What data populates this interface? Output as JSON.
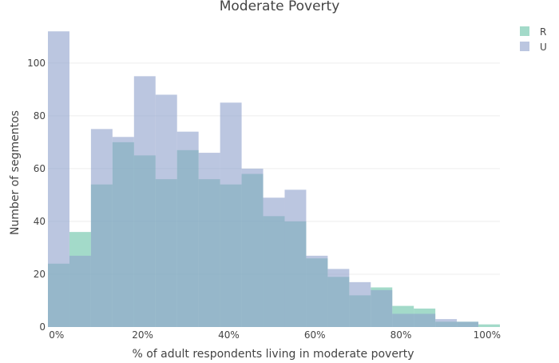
{
  "chart_data": {
    "type": "bar",
    "title": "Moderate Poverty",
    "xlabel": "% of adult respondents living in moderate poverty",
    "ylabel": "Number of segmentos",
    "xlim": [
      -0.02,
      1.03
    ],
    "ylim": [
      0,
      116
    ],
    "x_ticks": [
      0,
      0.2,
      0.4,
      0.6,
      0.8,
      1.0
    ],
    "x_tick_labels": [
      "0%",
      "20%",
      "40%",
      "60%",
      "80%",
      "100%"
    ],
    "y_ticks": [
      0,
      20,
      40,
      60,
      80,
      100
    ],
    "y_tick_labels": [
      "0",
      "20",
      "40",
      "60",
      "80",
      "100"
    ],
    "bin_edges": [
      -0.02,
      0.03,
      0.08,
      0.13,
      0.18,
      0.23,
      0.28,
      0.33,
      0.38,
      0.43,
      0.48,
      0.53,
      0.58,
      0.63,
      0.68,
      0.73,
      0.78,
      0.83,
      0.88,
      0.93,
      0.98,
      1.03
    ],
    "series": [
      {
        "name": "R",
        "color": "#66c2a5",
        "opacity": 0.6,
        "values": [
          24,
          36,
          54,
          70,
          65,
          56,
          67,
          56,
          54,
          58,
          42,
          40,
          26,
          19,
          12,
          15,
          8,
          7,
          2,
          2,
          1
        ]
      },
      {
        "name": "U",
        "color": "#8da0cb",
        "opacity": 0.6,
        "values": [
          112,
          27,
          75,
          72,
          95,
          88,
          74,
          66,
          85,
          60,
          49,
          52,
          27,
          22,
          17,
          14,
          5,
          5,
          3,
          2,
          0
        ]
      }
    ],
    "grid": true,
    "legend_position": "top-right",
    "barmode": "overlay"
  }
}
